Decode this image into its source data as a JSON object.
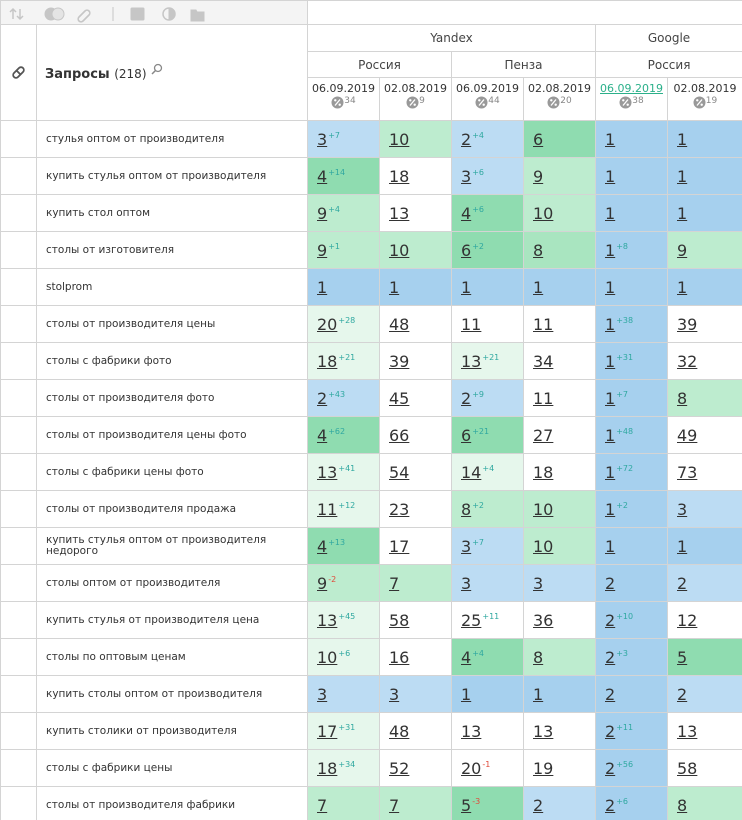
{
  "header": {
    "title": "Запросы",
    "count": "(218)",
    "engines": [
      {
        "name": "Yandex"
      },
      {
        "name": "Google"
      }
    ],
    "regions": [
      "Россия",
      "Пенза",
      "Россия"
    ],
    "dates": [
      {
        "date": "06.09.2019",
        "percent": 34
      },
      {
        "date": "02.08.2019",
        "percent": 9
      },
      {
        "date": "06.09.2019",
        "percent": 44
      },
      {
        "date": "02.08.2019",
        "percent": 20
      },
      {
        "date": "06.09.2019",
        "percent": 38
      },
      {
        "date": "02.08.2019",
        "percent": 19
      }
    ]
  },
  "rows": [
    {
      "query": "стулья оптом от производителя",
      "cells": [
        {
          "value": 3,
          "change": "+7",
          "color": "#bcdcf3"
        },
        {
          "value": 10,
          "color": "#bdeccf"
        },
        {
          "value": 2,
          "change": "+4",
          "color": "#bcdcf3"
        },
        {
          "value": 6,
          "color": "#8fdcb0"
        },
        {
          "value": 1,
          "color": "#a6d0ee"
        },
        {
          "value": 1,
          "color": "#a6d0ee"
        }
      ]
    },
    {
      "query": "купить стулья оптом от производителя",
      "cells": [
        {
          "value": 4,
          "change": "+14",
          "color": "#8fdcb0"
        },
        {
          "value": 18,
          "color": "#ffffff"
        },
        {
          "value": 3,
          "change": "+6",
          "color": "#bcdcf3"
        },
        {
          "value": 9,
          "color": "#bdeccf"
        },
        {
          "value": 1,
          "color": "#a6d0ee"
        },
        {
          "value": 1,
          "color": "#a6d0ee"
        }
      ]
    },
    {
      "query": "купить стол оптом",
      "cells": [
        {
          "value": 9,
          "change": "+4",
          "color": "#bdeccf"
        },
        {
          "value": 13,
          "color": "#ffffff"
        },
        {
          "value": 4,
          "change": "+6",
          "color": "#8fdcb0"
        },
        {
          "value": 10,
          "color": "#bdeccf"
        },
        {
          "value": 1,
          "color": "#a6d0ee"
        },
        {
          "value": 1,
          "color": "#a6d0ee"
        }
      ]
    },
    {
      "query": "столы от изготовителя",
      "cells": [
        {
          "value": 9,
          "change": "+1",
          "color": "#bdeccf"
        },
        {
          "value": 10,
          "color": "#bdeccf"
        },
        {
          "value": 6,
          "change": "+2",
          "color": "#8fdcb0"
        },
        {
          "value": 8,
          "color": "#a9e5c0"
        },
        {
          "value": 1,
          "change": "+8",
          "color": "#a6d0ee"
        },
        {
          "value": 9,
          "color": "#bdeccf"
        }
      ]
    },
    {
      "query": "stolprom",
      "cells": [
        {
          "value": 1,
          "color": "#a6d0ee"
        },
        {
          "value": 1,
          "color": "#a6d0ee"
        },
        {
          "value": 1,
          "color": "#a6d0ee"
        },
        {
          "value": 1,
          "color": "#a6d0ee"
        },
        {
          "value": 1,
          "color": "#a6d0ee"
        },
        {
          "value": 1,
          "color": "#a6d0ee"
        }
      ]
    },
    {
      "query": "столы от производителя цены",
      "cells": [
        {
          "value": 20,
          "change": "+28",
          "color": "#e6f7ec"
        },
        {
          "value": 48,
          "color": "#ffffff"
        },
        {
          "value": 11,
          "color": "#ffffff"
        },
        {
          "value": 11,
          "color": "#ffffff"
        },
        {
          "value": 1,
          "change": "+38",
          "color": "#a6d0ee"
        },
        {
          "value": 39,
          "color": "#ffffff"
        }
      ]
    },
    {
      "query": "столы с фабрики фото",
      "cells": [
        {
          "value": 18,
          "change": "+21",
          "color": "#e6f7ec"
        },
        {
          "value": 39,
          "color": "#ffffff"
        },
        {
          "value": 13,
          "change": "+21",
          "color": "#e6f7ec"
        },
        {
          "value": 34,
          "color": "#ffffff"
        },
        {
          "value": 1,
          "change": "+31",
          "color": "#a6d0ee"
        },
        {
          "value": 32,
          "color": "#ffffff"
        }
      ]
    },
    {
      "query": "столы от производителя фото",
      "cells": [
        {
          "value": 2,
          "change": "+43",
          "color": "#bcdcf3"
        },
        {
          "value": 45,
          "color": "#ffffff"
        },
        {
          "value": 2,
          "change": "+9",
          "color": "#bcdcf3"
        },
        {
          "value": 11,
          "color": "#ffffff"
        },
        {
          "value": 1,
          "change": "+7",
          "color": "#a6d0ee"
        },
        {
          "value": 8,
          "color": "#bdeccf"
        }
      ]
    },
    {
      "query": "столы от производителя цены фото",
      "cells": [
        {
          "value": 4,
          "change": "+62",
          "color": "#8fdcb0"
        },
        {
          "value": 66,
          "color": "#ffffff"
        },
        {
          "value": 6,
          "change": "+21",
          "color": "#8fdcb0"
        },
        {
          "value": 27,
          "color": "#ffffff"
        },
        {
          "value": 1,
          "change": "+48",
          "color": "#a6d0ee"
        },
        {
          "value": 49,
          "color": "#ffffff"
        }
      ]
    },
    {
      "query": "столы с фабрики цены фото",
      "cells": [
        {
          "value": 13,
          "change": "+41",
          "color": "#e6f7ec"
        },
        {
          "value": 54,
          "color": "#ffffff"
        },
        {
          "value": 14,
          "change": "+4",
          "color": "#e6f7ec"
        },
        {
          "value": 18,
          "color": "#ffffff"
        },
        {
          "value": 1,
          "change": "+72",
          "color": "#a6d0ee"
        },
        {
          "value": 73,
          "color": "#ffffff"
        }
      ]
    },
    {
      "query": "столы от производителя продажа",
      "cells": [
        {
          "value": 11,
          "change": "+12",
          "color": "#e6f7ec"
        },
        {
          "value": 23,
          "color": "#ffffff"
        },
        {
          "value": 8,
          "change": "+2",
          "color": "#bdeccf"
        },
        {
          "value": 10,
          "color": "#bdeccf"
        },
        {
          "value": 1,
          "change": "+2",
          "color": "#a6d0ee"
        },
        {
          "value": 3,
          "color": "#bcdcf3"
        }
      ]
    },
    {
      "query": "купить стулья оптом от производителя недорого",
      "cells": [
        {
          "value": 4,
          "change": "+13",
          "color": "#8fdcb0"
        },
        {
          "value": 17,
          "color": "#ffffff"
        },
        {
          "value": 3,
          "change": "+7",
          "color": "#bcdcf3"
        },
        {
          "value": 10,
          "color": "#bdeccf"
        },
        {
          "value": 1,
          "color": "#a6d0ee"
        },
        {
          "value": 1,
          "color": "#a6d0ee"
        }
      ]
    },
    {
      "query": "столы оптом от производителя",
      "cells": [
        {
          "value": 9,
          "change": "-2",
          "color": "#bdeccf"
        },
        {
          "value": 7,
          "color": "#bdeccf"
        },
        {
          "value": 3,
          "color": "#bcdcf3"
        },
        {
          "value": 3,
          "color": "#bcdcf3"
        },
        {
          "value": 2,
          "color": "#a6d0ee"
        },
        {
          "value": 2,
          "color": "#bcdcf3"
        }
      ]
    },
    {
      "query": "купить стулья от производителя цена",
      "cells": [
        {
          "value": 13,
          "change": "+45",
          "color": "#e6f7ec"
        },
        {
          "value": 58,
          "color": "#ffffff"
        },
        {
          "value": 25,
          "change": "+11",
          "color": "#ffffff"
        },
        {
          "value": 36,
          "color": "#ffffff"
        },
        {
          "value": 2,
          "change": "+10",
          "color": "#a6d0ee"
        },
        {
          "value": 12,
          "color": "#ffffff"
        }
      ]
    },
    {
      "query": "столы по оптовым ценам",
      "cells": [
        {
          "value": 10,
          "change": "+6",
          "color": "#e6f7ec"
        },
        {
          "value": 16,
          "color": "#ffffff"
        },
        {
          "value": 4,
          "change": "+4",
          "color": "#8fdcb0"
        },
        {
          "value": 8,
          "color": "#bdeccf"
        },
        {
          "value": 2,
          "change": "+3",
          "color": "#a6d0ee"
        },
        {
          "value": 5,
          "color": "#8fdcb0"
        }
      ]
    },
    {
      "query": "купить столы оптом от производителя",
      "cells": [
        {
          "value": 3,
          "color": "#bcdcf3"
        },
        {
          "value": 3,
          "color": "#bcdcf3"
        },
        {
          "value": 1,
          "color": "#a6d0ee"
        },
        {
          "value": 1,
          "color": "#a6d0ee"
        },
        {
          "value": 2,
          "color": "#a6d0ee"
        },
        {
          "value": 2,
          "color": "#bcdcf3"
        }
      ]
    },
    {
      "query": "купить столики от производителя",
      "cells": [
        {
          "value": 17,
          "change": "+31",
          "color": "#e6f7ec"
        },
        {
          "value": 48,
          "color": "#ffffff"
        },
        {
          "value": 13,
          "color": "#ffffff"
        },
        {
          "value": 13,
          "color": "#ffffff"
        },
        {
          "value": 2,
          "change": "+11",
          "color": "#a6d0ee"
        },
        {
          "value": 13,
          "color": "#ffffff"
        }
      ]
    },
    {
      "query": "столы с фабрики цены",
      "cells": [
        {
          "value": 18,
          "change": "+34",
          "color": "#e6f7ec"
        },
        {
          "value": 52,
          "color": "#ffffff"
        },
        {
          "value": 20,
          "change": "-1",
          "color": "#ffffff"
        },
        {
          "value": 19,
          "color": "#ffffff"
        },
        {
          "value": 2,
          "change": "+56",
          "color": "#a6d0ee"
        },
        {
          "value": 58,
          "color": "#ffffff"
        }
      ]
    },
    {
      "query": "столы от производителя фабрики",
      "cells": [
        {
          "value": 7,
          "color": "#bdeccf"
        },
        {
          "value": 7,
          "color": "#bdeccf"
        },
        {
          "value": 5,
          "change": "-3",
          "color": "#8fdcb0"
        },
        {
          "value": 2,
          "color": "#bcdcf3"
        },
        {
          "value": 2,
          "change": "+6",
          "color": "#a6d0ee"
        },
        {
          "value": 8,
          "color": "#bdeccf"
        }
      ]
    }
  ]
}
